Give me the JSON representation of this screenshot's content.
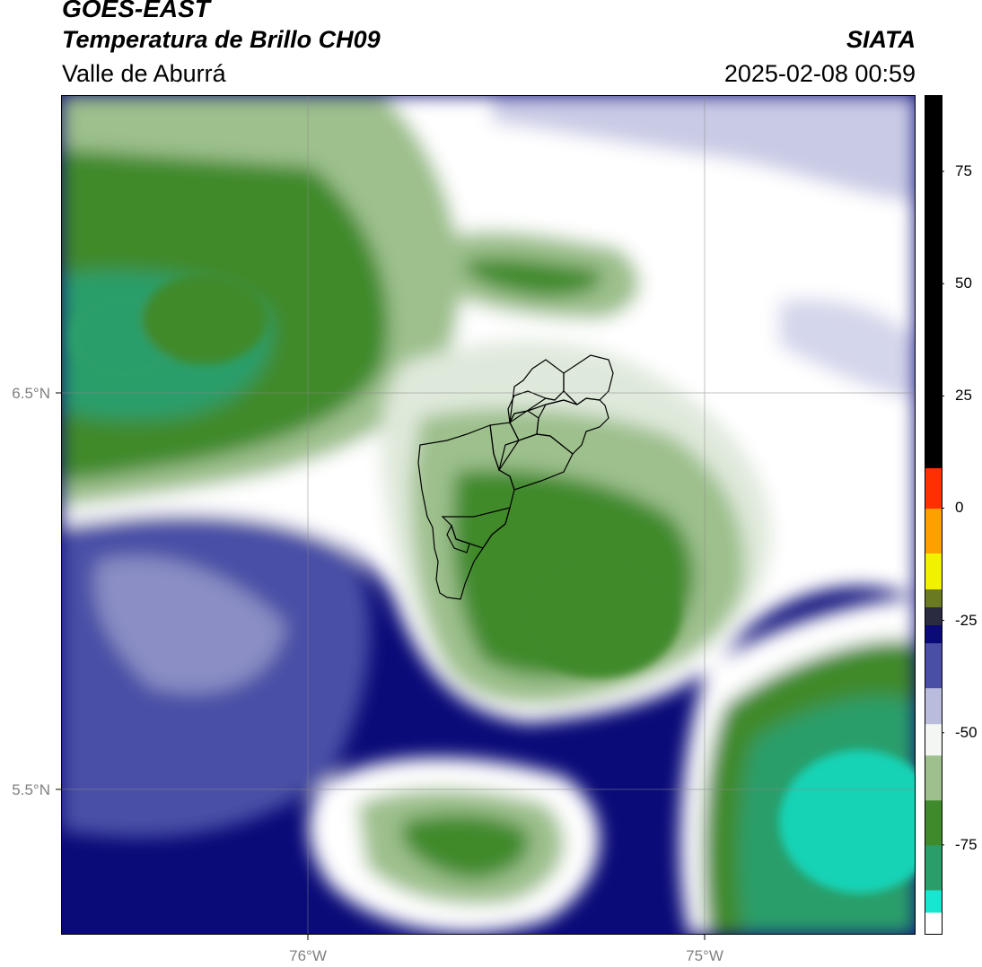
{
  "header": {
    "satellite": "GOES-EAST",
    "product": "Temperatura de Brillo CH09",
    "region": "Valle de Aburrá",
    "brand": "SIATA",
    "datetime": "2025-02-08 00:59"
  },
  "map": {
    "lat_labels": [
      "6.5°N",
      "5.5°N"
    ],
    "lon_labels": [
      "76°W",
      "75°W"
    ]
  },
  "colorbar": {
    "ticks": [
      "75",
      "50",
      "25",
      "0",
      "-25",
      "-50",
      "-75"
    ],
    "segments": [
      {
        "from": -95,
        "to": -90,
        "color": "#ffffff"
      },
      {
        "from": -90,
        "to": -85,
        "color": "#19e6d0"
      },
      {
        "from": -85,
        "to": -75,
        "color": "#2a9e6a"
      },
      {
        "from": -75,
        "to": -65,
        "color": "#3f8a2a"
      },
      {
        "from": -65,
        "to": -55,
        "color": "#9dc08c"
      },
      {
        "from": -55,
        "to": -48,
        "color": "#f4f6f4"
      },
      {
        "from": -48,
        "to": -40,
        "color": "#b9bcdc"
      },
      {
        "from": -40,
        "to": -30,
        "color": "#4a4fa6"
      },
      {
        "from": -30,
        "to": -26,
        "color": "#0a0a78"
      },
      {
        "from": -26,
        "to": -22,
        "color": "#2a2a40"
      },
      {
        "from": -22,
        "to": -18,
        "color": "#6a7a20"
      },
      {
        "from": -18,
        "to": -10,
        "color": "#f2f200"
      },
      {
        "from": -10,
        "to": 0,
        "color": "#ffa000"
      },
      {
        "from": 0,
        "to": 9,
        "color": "#ff3000"
      },
      {
        "from": 9,
        "to": 92,
        "color": "#000000"
      }
    ]
  },
  "colors": {
    "deep_blue": "#0a0a78",
    "mid_blue": "#4a4fa6",
    "light_lavender": "#b9bcdc",
    "white": "#ffffff",
    "pale_green": "#dfe9db",
    "light_green": "#9dc08c",
    "green": "#3f8a2a",
    "teal": "#2a9e6a",
    "cyan": "#19d3b6"
  }
}
